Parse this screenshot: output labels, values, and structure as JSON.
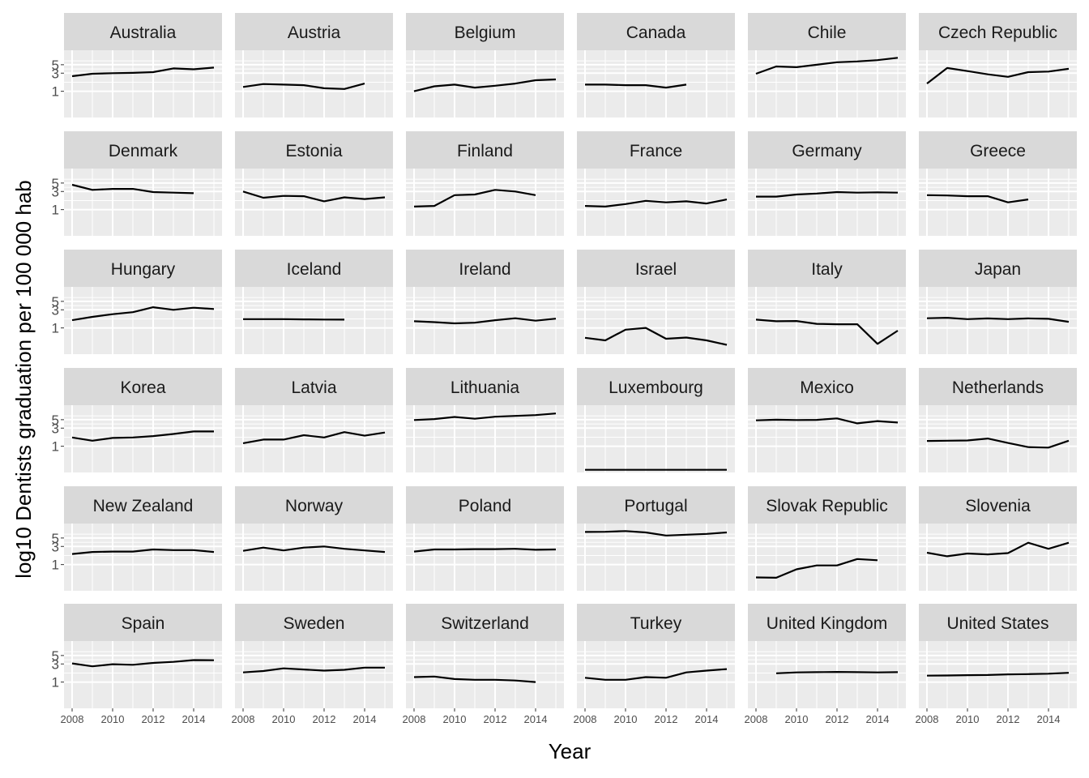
{
  "chart_data": {
    "type": "line",
    "title": "",
    "xlabel": "Year",
    "ylabel": "log10 Dentists graduation per 100 000 hab",
    "x_ticks": [
      2008,
      2010,
      2012,
      2014
    ],
    "y_ticks": [
      1,
      3,
      5
    ],
    "xlim": [
      2007.6,
      2015.4
    ],
    "ylim_log10": [
      -0.69,
      1.08
    ],
    "y_scale": "log10",
    "grid": true,
    "colors": {
      "panel_bg": "#EBEBEB",
      "strip_bg": "#D9D9D9",
      "grid": "#FFFFFF",
      "line": "#000000"
    },
    "x": [
      2008,
      2009,
      2010,
      2011,
      2012,
      2013,
      2014,
      2015
    ],
    "series": [
      {
        "name": "Australia",
        "values": [
          2.5,
          2.9,
          3.0,
          3.05,
          3.2,
          4.0,
          3.8,
          4.2
        ]
      },
      {
        "name": "Austria",
        "values": [
          1.3,
          1.55,
          1.5,
          1.45,
          1.2,
          1.15,
          1.6,
          null
        ]
      },
      {
        "name": "Belgium",
        "values": [
          1.0,
          1.35,
          1.5,
          1.25,
          1.4,
          1.6,
          1.95,
          2.05
        ]
      },
      {
        "name": "Canada",
        "values": [
          1.5,
          1.5,
          1.45,
          1.45,
          1.25,
          1.5,
          null,
          null
        ]
      },
      {
        "name": "Chile",
        "values": [
          2.9,
          4.5,
          4.3,
          5.0,
          5.8,
          6.1,
          6.6,
          7.6
        ]
      },
      {
        "name": "Czech Republic",
        "values": [
          1.6,
          4.1,
          3.4,
          2.8,
          2.4,
          3.2,
          3.3,
          3.9
        ]
      },
      {
        "name": "Denmark",
        "values": [
          4.5,
          3.3,
          3.5,
          3.5,
          2.9,
          2.8,
          2.7,
          null
        ]
      },
      {
        "name": "Estonia",
        "values": [
          3.0,
          2.05,
          2.3,
          2.25,
          1.65,
          2.1,
          1.9,
          2.1
        ]
      },
      {
        "name": "Finland",
        "values": [
          1.2,
          1.25,
          2.4,
          2.5,
          3.3,
          3.0,
          2.4,
          null
        ]
      },
      {
        "name": "France",
        "values": [
          1.25,
          1.2,
          1.4,
          1.7,
          1.55,
          1.65,
          1.45,
          1.85
        ]
      },
      {
        "name": "Germany",
        "values": [
          2.2,
          2.2,
          2.5,
          2.65,
          2.9,
          2.8,
          2.85,
          2.8
        ]
      },
      {
        "name": "Greece",
        "values": [
          2.4,
          2.35,
          2.25,
          2.25,
          1.55,
          1.85,
          null,
          null
        ]
      },
      {
        "name": "Hungary",
        "values": [
          1.6,
          1.95,
          2.3,
          2.6,
          3.5,
          3.0,
          3.4,
          3.15
        ]
      },
      {
        "name": "Iceland",
        "values": [
          1.7,
          1.7,
          1.7,
          1.68,
          1.66,
          1.65,
          null,
          null
        ]
      },
      {
        "name": "Ireland",
        "values": [
          1.5,
          1.42,
          1.32,
          1.37,
          1.6,
          1.8,
          1.55,
          1.75
        ]
      },
      {
        "name": "Israel",
        "values": [
          0.55,
          0.47,
          0.9,
          1.0,
          0.52,
          0.56,
          0.47,
          0.36
        ]
      },
      {
        "name": "Italy",
        "values": [
          1.65,
          1.5,
          1.52,
          1.28,
          1.25,
          1.25,
          0.38,
          0.85
        ]
      },
      {
        "name": "Japan",
        "values": [
          1.8,
          1.85,
          1.7,
          1.78,
          1.7,
          1.78,
          1.74,
          1.45
        ]
      },
      {
        "name": "Korea",
        "values": [
          1.7,
          1.4,
          1.65,
          1.7,
          1.85,
          2.1,
          2.45,
          2.45
        ]
      },
      {
        "name": "Latvia",
        "values": [
          1.2,
          1.5,
          1.5,
          1.95,
          1.7,
          2.35,
          1.9,
          2.3
        ]
      },
      {
        "name": "Lithuania",
        "values": [
          4.9,
          5.2,
          5.9,
          5.3,
          6.0,
          6.3,
          6.6,
          7.3
        ]
      },
      {
        "name": "Luxembourg",
        "values": [
          0.24,
          0.24,
          0.24,
          0.24,
          0.24,
          0.24,
          0.24,
          0.24
        ]
      },
      {
        "name": "Mexico",
        "values": [
          4.8,
          5.0,
          4.9,
          4.95,
          5.4,
          4.0,
          4.6,
          4.2
        ]
      },
      {
        "name": "Netherlands",
        "values": [
          1.38,
          1.4,
          1.42,
          1.6,
          1.22,
          0.95,
          0.92,
          1.4
        ]
      },
      {
        "name": "New Zealand",
        "values": [
          1.9,
          2.15,
          2.2,
          2.2,
          2.5,
          2.4,
          2.4,
          2.15
        ]
      },
      {
        "name": "Norway",
        "values": [
          2.3,
          2.8,
          2.35,
          2.8,
          3.0,
          2.6,
          2.35,
          2.15
        ]
      },
      {
        "name": "Poland",
        "values": [
          2.2,
          2.5,
          2.5,
          2.55,
          2.55,
          2.6,
          2.45,
          2.5
        ]
      },
      {
        "name": "Portugal",
        "values": [
          7.2,
          7.3,
          7.6,
          7.0,
          5.8,
          6.1,
          6.4,
          7.0
        ]
      },
      {
        "name": "Slovak Republic",
        "values": [
          0.46,
          0.45,
          0.75,
          0.95,
          0.95,
          1.4,
          1.3,
          null
        ]
      },
      {
        "name": "Slovenia",
        "values": [
          2.05,
          1.65,
          1.95,
          1.85,
          2.0,
          3.75,
          2.6,
          3.75
        ]
      },
      {
        "name": "Spain",
        "values": [
          3.1,
          2.6,
          2.95,
          2.85,
          3.2,
          3.4,
          3.8,
          3.75
        ]
      },
      {
        "name": "Sweden",
        "values": [
          1.8,
          1.95,
          2.3,
          2.15,
          2.0,
          2.1,
          2.4,
          2.4
        ]
      },
      {
        "name": "Switzerland",
        "values": [
          1.35,
          1.4,
          1.2,
          1.15,
          1.15,
          1.1,
          1.0,
          null
        ]
      },
      {
        "name": "Turkey",
        "values": [
          1.3,
          1.15,
          1.15,
          1.35,
          1.3,
          1.8,
          2.0,
          2.2
        ]
      },
      {
        "name": "United Kingdom",
        "values": [
          null,
          1.7,
          1.8,
          1.82,
          1.85,
          1.82,
          1.8,
          1.82
        ]
      },
      {
        "name": "United States",
        "values": [
          1.48,
          1.49,
          1.52,
          1.54,
          1.6,
          1.62,
          1.66,
          1.75
        ]
      }
    ]
  }
}
